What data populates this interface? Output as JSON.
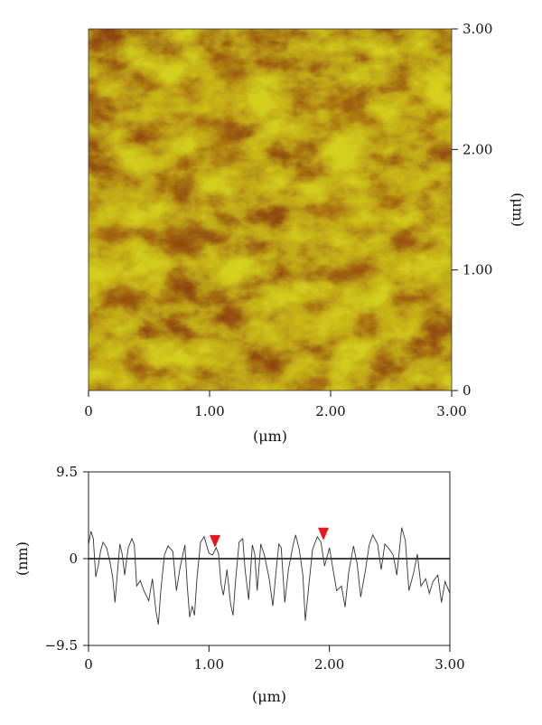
{
  "chart_data": [
    {
      "type": "heatmap",
      "xlabel": "(μm)",
      "ylabel": "(μm)",
      "xlim": [
        0,
        3
      ],
      "ylim": [
        0,
        3
      ],
      "x_ticks": [
        "0",
        "1.00",
        "2.00",
        "3.00"
      ],
      "y_ticks": [
        "0",
        "1.00",
        "2.00",
        "3.00"
      ],
      "colors": {
        "low": "#7a1f0c",
        "mid": "#c58a1e",
        "high": "#d6d41c"
      }
    },
    {
      "type": "line",
      "xlabel": "(μm)",
      "ylabel": "(nm)",
      "xlim": [
        0,
        3
      ],
      "ylim": [
        -9.5,
        9.5
      ],
      "x_ticks": [
        "0",
        "1.00",
        "2.00",
        "3.00"
      ],
      "y_ticks": [
        "9.5",
        "0",
        "−9.5"
      ],
      "series": [
        {
          "x": [
            0,
            0.02,
            0.04,
            0.06,
            0.08,
            0.1,
            0.12,
            0.15,
            0.18,
            0.2,
            0.22,
            0.24,
            0.26,
            0.28,
            0.3,
            0.33,
            0.36,
            0.38,
            0.4,
            0.43,
            0.46,
            0.5,
            0.53,
            0.56,
            0.58,
            0.6,
            0.63,
            0.66,
            0.7,
            0.73,
            0.76,
            0.8,
            0.82,
            0.84,
            0.86,
            0.88,
            0.9,
            0.93,
            0.96,
            1.0,
            1.03,
            1.06,
            1.08,
            1.1,
            1.12,
            1.15,
            1.18,
            1.2,
            1.22,
            1.25,
            1.28,
            1.3,
            1.33,
            1.36,
            1.38,
            1.4,
            1.43,
            1.46,
            1.5,
            1.53,
            1.56,
            1.58,
            1.6,
            1.63,
            1.66,
            1.7,
            1.72,
            1.75,
            1.78,
            1.8,
            1.83,
            1.86,
            1.9,
            1.93,
            1.96,
            2.0,
            2.03,
            2.06,
            2.1,
            2.13,
            2.16,
            2.2,
            2.23,
            2.26,
            2.3,
            2.33,
            2.36,
            2.4,
            2.43,
            2.46,
            2.5,
            2.53,
            2.56,
            2.6,
            2.63,
            2.66,
            2.7,
            2.73,
            2.76,
            2.8,
            2.83,
            2.86,
            2.9,
            2.93,
            2.96,
            3.0
          ],
          "y": [
            1.5,
            3.0,
            2.2,
            -2.0,
            -0.8,
            0.8,
            1.8,
            1.2,
            -0.5,
            -2.0,
            -4.8,
            -1.5,
            1.6,
            0.5,
            -1.8,
            1.2,
            2.2,
            1.5,
            -3.0,
            -2.4,
            -3.5,
            -4.6,
            -2.2,
            -5.8,
            -7.2,
            -3.5,
            0.4,
            1.4,
            0.8,
            -3.5,
            -1.0,
            1.5,
            -3.0,
            -6.4,
            -5.2,
            -6.2,
            -2.2,
            1.8,
            2.4,
            0.6,
            0.4,
            1.2,
            0.5,
            -2.8,
            -4.0,
            -1.2,
            -5.0,
            -6.2,
            -2.5,
            1.8,
            2.2,
            -1.2,
            -4.5,
            1.5,
            0.5,
            -3.5,
            1.6,
            0.4,
            -2.2,
            -5.2,
            -1.0,
            1.6,
            1.2,
            -4.8,
            -1.2,
            1.6,
            2.6,
            1.0,
            -1.8,
            -6.8,
            -2.8,
            1.0,
            2.4,
            1.8,
            -0.8,
            1.2,
            -1.2,
            -3.5,
            -3.0,
            -5.3,
            -1.5,
            1.4,
            -0.5,
            -4.2,
            -1.2,
            1.5,
            2.6,
            1.6,
            -1.2,
            1.6,
            1.0,
            0.4,
            -1.8,
            3.4,
            2.0,
            -3.5,
            -1.5,
            0.5,
            -3.0,
            -2.2,
            -3.8,
            -2.5,
            -1.8,
            -4.8,
            -2.5,
            -3.8
          ]
        }
      ],
      "markers": [
        {
          "x": 1.05,
          "y": 1.2,
          "color": "#e8141e"
        },
        {
          "x": 1.95,
          "y": 2.0,
          "color": "#e8141e"
        }
      ]
    }
  ]
}
